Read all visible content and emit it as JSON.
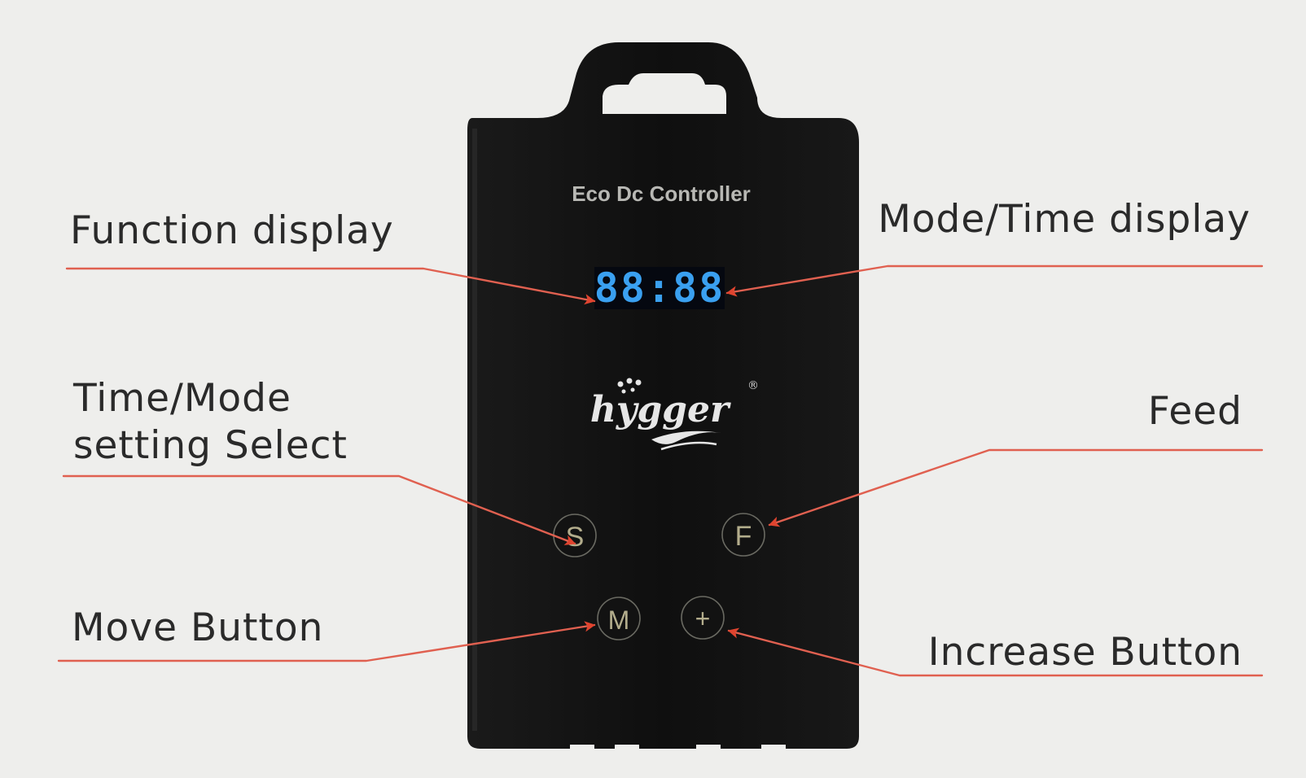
{
  "device": {
    "title": "Eco Dc Controller",
    "display": "88:88",
    "brand": "hygger",
    "registered_mark": "®",
    "buttons": {
      "select": "S",
      "feed": "F",
      "move": "M",
      "increase": "+"
    }
  },
  "callouts": {
    "function_display": "Function display",
    "mode_time_display": "Mode/Time display",
    "time_mode_select_line1": "Time/Mode",
    "time_mode_select_line2": "setting Select",
    "feed": "Feed",
    "move_button": "Move Button",
    "increase_button": "Increase Button"
  },
  "colors": {
    "background": "#eeeeec",
    "device_body": "#121212",
    "leader_line": "#e06050",
    "arrow": "#e0442f",
    "display_digits": "#3aa0f0",
    "brand_text": "#e6e6e6",
    "button_ring": "#6a6a62"
  }
}
